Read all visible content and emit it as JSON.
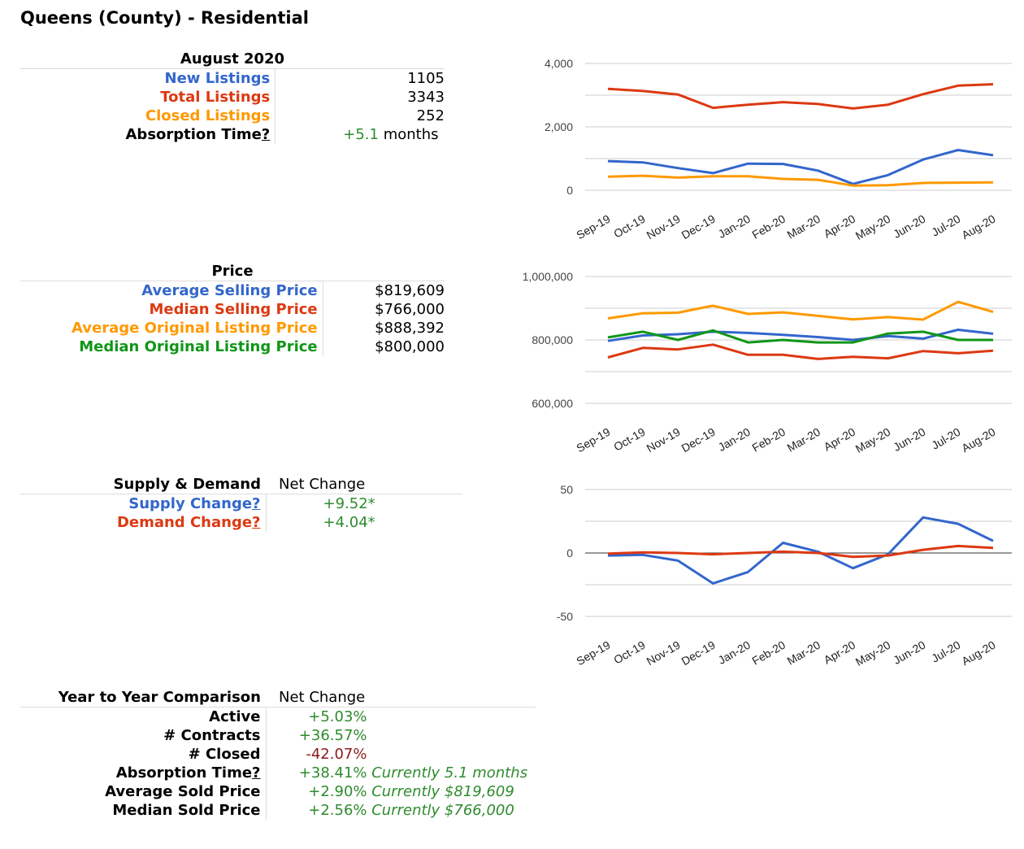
{
  "page": {
    "title": "Queens (County) - Residential"
  },
  "listings": {
    "heading": "August 2020",
    "rows": [
      {
        "label": "New Listings",
        "value": "1105",
        "color": "#3366cc"
      },
      {
        "label": "Total Listings",
        "value": "3343",
        "color": "#dc3912"
      },
      {
        "label": "Closed Listings",
        "value": "252",
        "color": "#ff9900"
      }
    ],
    "absorption": {
      "label": "Absorption Time",
      "hint": "?",
      "value": "+5.1",
      "unit": "months"
    }
  },
  "price": {
    "heading": "Price",
    "rows": [
      {
        "label": "Average Selling Price",
        "value": "$819,609",
        "color": "#3366cc"
      },
      {
        "label": "Median Selling Price",
        "value": "$766,000",
        "color": "#dc3912"
      },
      {
        "label": "Average Original Listing Price",
        "value": "$888,392",
        "color": "#ff9900"
      },
      {
        "label": "Median Original Listing Price",
        "value": "$800,000",
        "color": "#109618"
      }
    ]
  },
  "supply": {
    "heading": "Supply & Demand",
    "net_heading": "Net Change",
    "rows": [
      {
        "label": "Supply Change",
        "hint": "?",
        "value": "+9.52*",
        "color": "#3366cc"
      },
      {
        "label": "Demand Change",
        "hint": "?",
        "value": "+4.04*",
        "color": "#dc3912"
      }
    ]
  },
  "yoy": {
    "heading": "Year to Year Comparison",
    "net_heading": "Net Change",
    "rows": [
      {
        "label": "Active",
        "hint": "",
        "value": "+5.03%",
        "note": "",
        "tone": "green"
      },
      {
        "label": "# Contracts",
        "hint": "",
        "value": "+36.57%",
        "note": "",
        "tone": "green"
      },
      {
        "label": "# Closed",
        "hint": "",
        "value": "-42.07%",
        "note": "",
        "tone": "red"
      },
      {
        "label": "Absorption Time",
        "hint": "?",
        "value": "+38.41%",
        "note": "Currently 5.1 months",
        "tone": "green"
      },
      {
        "label": "Average Sold Price",
        "hint": "",
        "value": "+2.90%",
        "note": "Currently $819,609",
        "tone": "green"
      },
      {
        "label": "Median Sold Price",
        "hint": "",
        "value": "+2.56%",
        "note": "Currently $766,000",
        "tone": "green"
      }
    ]
  },
  "chart_data": [
    {
      "type": "line",
      "categories": [
        "Sep-19",
        "Oct-19",
        "Nov-19",
        "Dec-19",
        "Jan-20",
        "Feb-20",
        "Mar-20",
        "Apr-20",
        "May-20",
        "Jun-20",
        "Jul-20",
        "Aug-20"
      ],
      "yticks": [
        "4,000",
        "2,000",
        "0"
      ],
      "ylim": [
        0,
        4000
      ],
      "grid": true,
      "series": [
        {
          "color": "#dc3912",
          "values": [
            3200,
            3130,
            3020,
            2600,
            2700,
            2780,
            2720,
            2580,
            2700,
            3030,
            3300,
            3343
          ]
        },
        {
          "color": "#3366cc",
          "values": [
            920,
            880,
            700,
            540,
            840,
            830,
            620,
            200,
            480,
            970,
            1270,
            1105
          ]
        },
        {
          "color": "#ff9900",
          "values": [
            430,
            460,
            400,
            440,
            440,
            360,
            330,
            150,
            160,
            230,
            240,
            252
          ]
        }
      ]
    },
    {
      "type": "line",
      "categories": [
        "Sep-19",
        "Oct-19",
        "Nov-19",
        "Dec-19",
        "Jan-20",
        "Feb-20",
        "Mar-20",
        "Apr-20",
        "May-20",
        "Jun-20",
        "Jul-20",
        "Aug-20"
      ],
      "yticks": [
        "1,000,000",
        "800,000",
        "600,000"
      ],
      "ylim": [
        600000,
        1000000
      ],
      "grid": true,
      "series": [
        {
          "color": "#ff9900",
          "values": [
            868000,
            884000,
            886000,
            908000,
            882000,
            887000,
            876000,
            865000,
            872000,
            864000,
            920000,
            888392
          ]
        },
        {
          "color": "#3366cc",
          "values": [
            797000,
            814000,
            818000,
            826000,
            822000,
            816000,
            809000,
            800000,
            812000,
            804000,
            832000,
            819609
          ]
        },
        {
          "color": "#109618",
          "values": [
            808000,
            826000,
            800000,
            830000,
            792000,
            800000,
            792000,
            792000,
            820000,
            826000,
            800000,
            800000
          ]
        },
        {
          "color": "#dc3912",
          "values": [
            745000,
            775000,
            770000,
            785000,
            753000,
            753000,
            740000,
            747000,
            742000,
            765000,
            758000,
            766000
          ]
        }
      ]
    },
    {
      "type": "line",
      "categories": [
        "Sep-19",
        "Oct-19",
        "Nov-19",
        "Dec-19",
        "Jan-20",
        "Feb-20",
        "Mar-20",
        "Apr-20",
        "May-20",
        "Jun-20",
        "Jul-20",
        "Aug-20"
      ],
      "yticks": [
        "50",
        "0",
        "-50"
      ],
      "ylim": [
        -50,
        50
      ],
      "grid": true,
      "series": [
        {
          "color": "#3366cc",
          "values": [
            -2,
            -1.5,
            -6,
            -24,
            -15,
            8,
            1,
            -12,
            -1,
            28,
            23,
            9.52
          ]
        },
        {
          "color": "#dc3912",
          "values": [
            -0.5,
            0.5,
            0,
            -1,
            0,
            1,
            0,
            -3,
            -2,
            2.5,
            5.5,
            4.04
          ]
        }
      ]
    }
  ]
}
